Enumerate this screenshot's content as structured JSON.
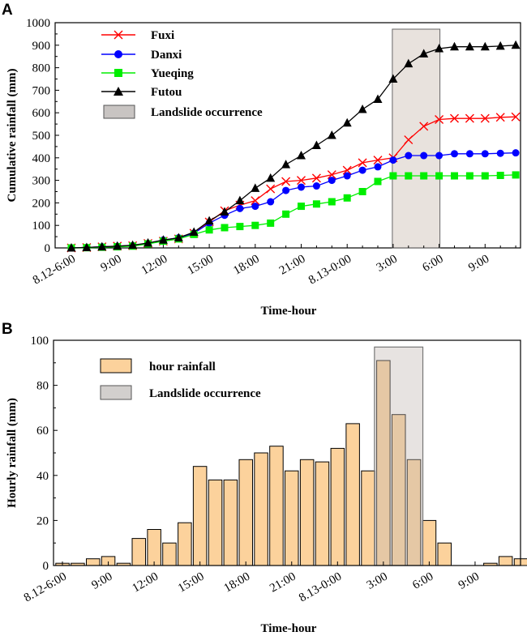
{
  "chart_data": [
    {
      "id": "A",
      "type": "line",
      "panel_label": "A",
      "title": "",
      "xlabel": "Time-hour",
      "ylabel": "Cumulative rainfall (mm)",
      "ylim": [
        0,
        1000
      ],
      "yticks": [
        0,
        100,
        200,
        300,
        400,
        500,
        600,
        700,
        800,
        900,
        1000
      ],
      "xtick_labels": [
        "8.12-6:00",
        "9:00",
        "12:00",
        "15:00",
        "18:00",
        "21:00",
        "8.13-0:00",
        "3:00",
        "6:00",
        "9:00"
      ],
      "x_hours": [
        0,
        1,
        2,
        3,
        4,
        5,
        6,
        7,
        8,
        9,
        10,
        11,
        12,
        13,
        14,
        15,
        16,
        17,
        18,
        19,
        20,
        21,
        22,
        23,
        24,
        25,
        26,
        27,
        28,
        29
      ],
      "series": [
        {
          "name": "Fuxi",
          "color": "#ff0000",
          "marker": "x",
          "values": [
            0,
            2,
            5,
            8,
            10,
            20,
            30,
            40,
            65,
            115,
            165,
            190,
            210,
            262,
            295,
            300,
            310,
            325,
            345,
            378,
            390,
            400,
            480,
            540,
            570,
            575,
            575,
            575,
            580,
            582
          ]
        },
        {
          "name": "Danxi",
          "color": "#0000ff",
          "marker": "circle",
          "values": [
            0,
            2,
            5,
            7,
            10,
            20,
            35,
            45,
            65,
            110,
            145,
            175,
            185,
            205,
            255,
            270,
            275,
            300,
            320,
            345,
            360,
            390,
            410,
            410,
            410,
            418,
            418,
            418,
            420,
            422
          ]
        },
        {
          "name": "Yueqing",
          "color": "#00ee00",
          "marker": "square",
          "values": [
            0,
            1,
            3,
            5,
            8,
            18,
            30,
            40,
            60,
            80,
            90,
            95,
            100,
            110,
            150,
            185,
            195,
            205,
            222,
            250,
            295,
            320,
            320,
            320,
            320,
            320,
            320,
            320,
            322,
            324
          ]
        },
        {
          "name": "Futou",
          "color": "#000000",
          "marker": "triangle",
          "values": [
            0,
            2,
            5,
            8,
            12,
            22,
            35,
            45,
            70,
            120,
            160,
            210,
            265,
            310,
            370,
            410,
            455,
            500,
            555,
            615,
            660,
            750,
            818,
            862,
            885,
            893,
            893,
            893,
            896,
            900
          ]
        }
      ],
      "landslide_window_hours": [
        21,
        24
      ],
      "legend": [
        "Fuxi",
        "Danxi",
        "Yueqing",
        "Futou",
        "Landslide occurrence"
      ],
      "legend_position": "top-left"
    },
    {
      "id": "B",
      "type": "bar",
      "panel_label": "B",
      "title": "",
      "xlabel": "Time-hour",
      "ylabel": "Hourly rainfall (mm)",
      "ylim": [
        0,
        100
      ],
      "yticks": [
        0,
        20,
        40,
        60,
        80,
        100
      ],
      "xtick_labels": [
        "8.12-6:00",
        "9:00",
        "12:00",
        "15:00",
        "18:00",
        "21:00",
        "8.13-0:00",
        "3:00",
        "6:00",
        "9:00"
      ],
      "values": [
        1,
        1,
        3,
        4,
        1,
        12,
        16,
        10,
        19,
        44,
        38,
        38,
        47,
        50,
        53,
        42,
        47,
        46,
        52,
        63,
        42,
        91,
        67,
        47,
        20,
        10,
        0,
        0,
        1,
        4,
        3
      ],
      "bar_color": "#fcd29c",
      "landslide_window_hours": [
        21,
        24
      ],
      "legend": [
        "hour rainfall",
        "Landslide occurrence"
      ],
      "legend_position": "top-left"
    }
  ]
}
